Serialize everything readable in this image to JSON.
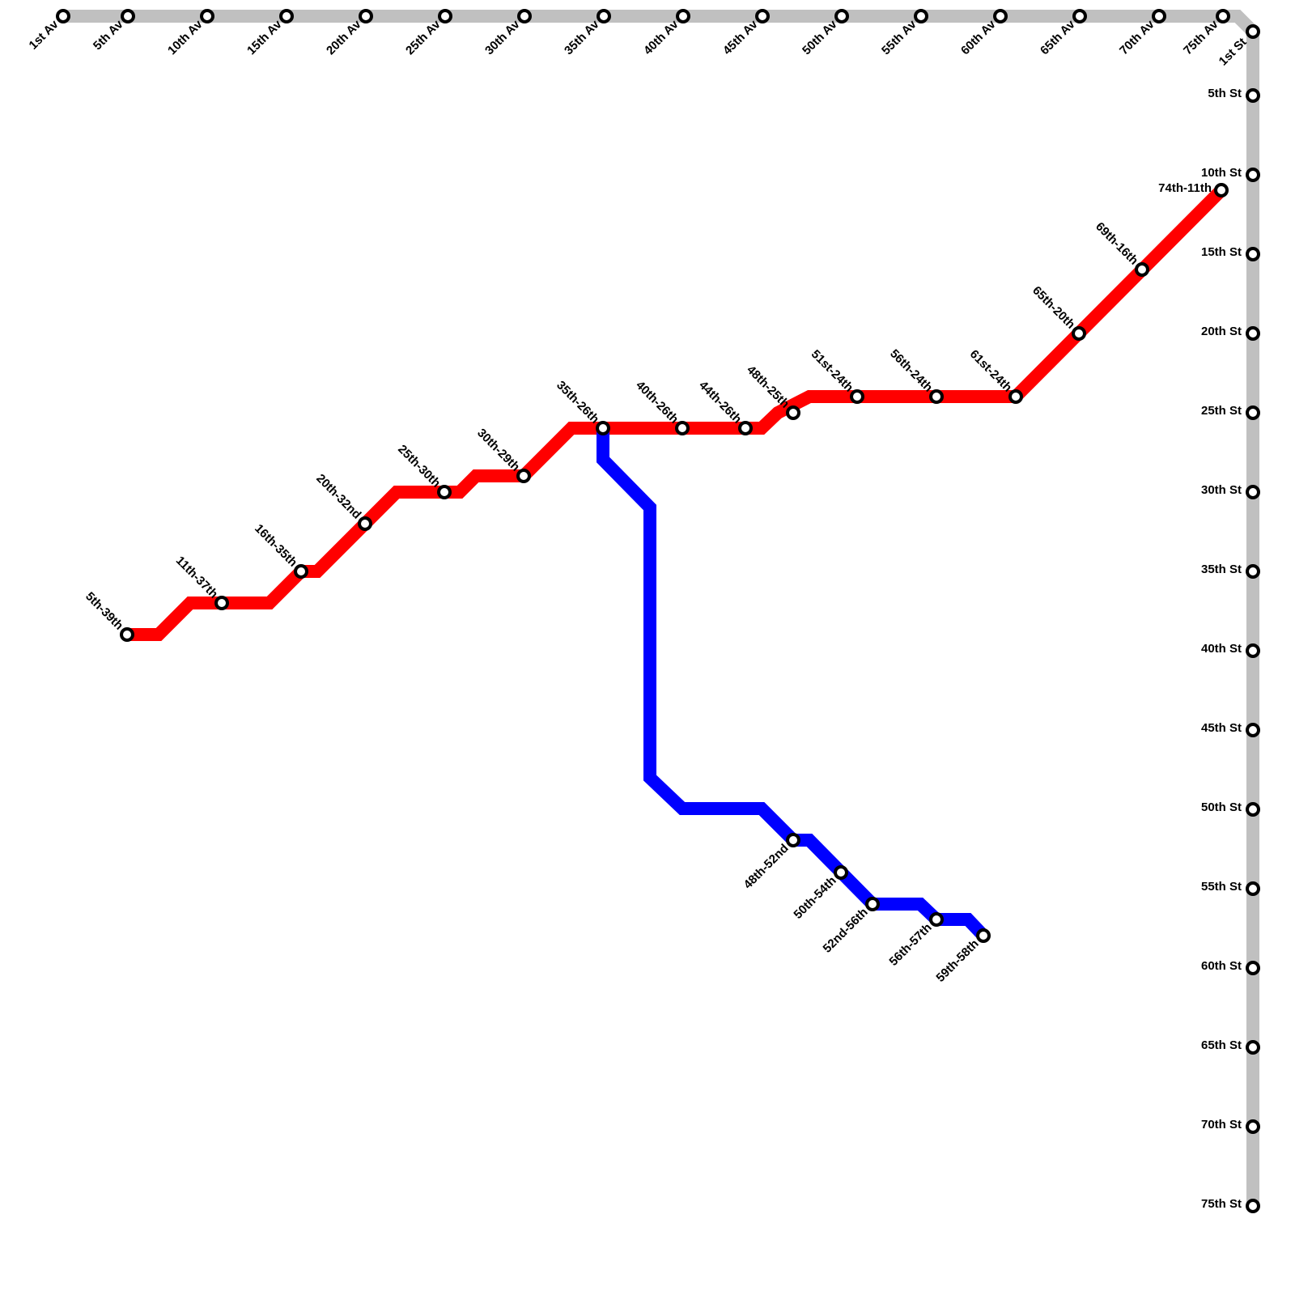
{
  "avenues": [
    "1st Av",
    "5th Av",
    "10th Av",
    "15th Av",
    "20th Av",
    "25th Av",
    "30th Av",
    "35th Av",
    "40th Av",
    "45th Av",
    "50th Av",
    "55th Av",
    "60th Av",
    "65th Av",
    "70th Av",
    "75th Av"
  ],
  "streets": [
    "1st St",
    "5th St",
    "10th St",
    "15th St",
    "20th St",
    "25th St",
    "30th St",
    "35th St",
    "40th St",
    "45th St",
    "50th St",
    "55th St",
    "60th St",
    "65th St",
    "70th St",
    "75th St"
  ],
  "red_line": {
    "stations": [
      "5th-39th",
      "11th-37th",
      "16th-35th",
      "20th-32nd",
      "25th-30th",
      "30th-29th",
      "35th-26th",
      "40th-26th",
      "44th-26th",
      "48th-25th",
      "51st-24th",
      "56th-24th",
      "61st-24th",
      "65th-20th",
      "69th-16th",
      "74th-11th"
    ]
  },
  "blue_line": {
    "stations": [
      "48th-52nd",
      "50th-54th",
      "52nd-56th",
      "56th-57th",
      "59th-58th"
    ]
  }
}
